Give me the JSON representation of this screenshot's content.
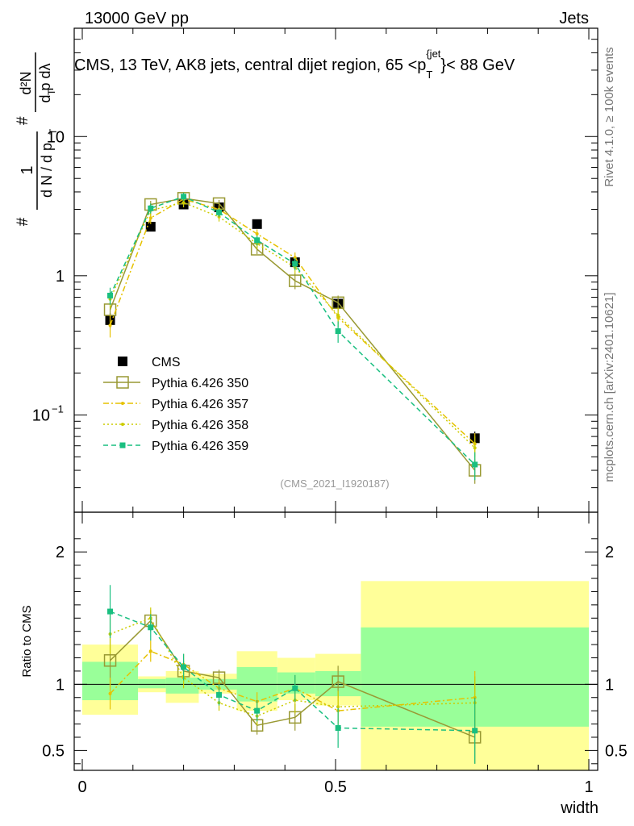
{
  "header": {
    "energy_label": "13000 GeV pp",
    "category_label": "Jets"
  },
  "side_labels": {
    "rivet": "Rivet 4.1.0, ≥ 100k events",
    "source": "mcplots.cern.ch [arXiv:2401.10621]"
  },
  "chart_data": {
    "type": "line",
    "title": "CMS, 13 TeV, AK8 jets, central dijet region, 65 <p_T^{jet}< 88 GeV",
    "title_parts": {
      "main": "CMS, 13 TeV, AK8 jets, central dijet region, 65 <p",
      "sub": "T",
      "sup": "{jet",
      "tail": "}< 88 GeV"
    },
    "watermark": "(CMS_2021_I1920187)",
    "xlabel": "width",
    "ylabel_top": "1 / (dN/dp_T) · d²N / (dp_T dλ)",
    "ylabel_ratio": "Ratio to CMS",
    "xlim": [
      0,
      1
    ],
    "ylim": [
      0.02,
      60
    ],
    "ratio_ylim": [
      0.35,
      2.3
    ],
    "x_ticks": [
      "0",
      "0.5",
      "1"
    ],
    "y_ticks": [
      {
        "v": 0.1,
        "label": "10",
        "exp": "−1"
      },
      {
        "v": 1,
        "label": "1"
      },
      {
        "v": 10,
        "label": "10"
      }
    ],
    "ratio_ticks": [
      "0.5",
      "1",
      "2"
    ],
    "x": [
      0.055,
      0.135,
      0.2,
      0.27,
      0.345,
      0.42,
      0.505,
      0.775
    ],
    "bins": [
      [
        0.0,
        0.11
      ],
      [
        0.11,
        0.165
      ],
      [
        0.165,
        0.23
      ],
      [
        0.23,
        0.305
      ],
      [
        0.305,
        0.385
      ],
      [
        0.385,
        0.46
      ],
      [
        0.46,
        0.55
      ],
      [
        0.55,
        1.0
      ]
    ],
    "series": [
      {
        "name": "CMS",
        "color": "#000000",
        "style": "square",
        "values": [
          0.48,
          2.25,
          3.25,
          3.1,
          2.35,
          1.25,
          0.63,
          0.068
        ],
        "errors": [
          0.06,
          0.12,
          0.15,
          0.15,
          0.12,
          0.08,
          0.05,
          0.008
        ]
      },
      {
        "name": "Pythia 6.426 350",
        "color": "#999933",
        "style": "solid-open-square",
        "values": [
          0.57,
          3.25,
          3.6,
          3.3,
          1.55,
          0.92,
          0.64,
          0.04
        ],
        "errors": [
          0.1,
          0.2,
          0.25,
          0.2,
          0.12,
          0.12,
          0.08,
          0.008
        ]
      },
      {
        "name": "Pythia 6.426 357",
        "color": "#e6c200",
        "style": "dashdot",
        "values": [
          0.44,
          2.6,
          3.55,
          3.0,
          2.0,
          1.35,
          0.5,
          0.062
        ],
        "errors": [
          0.08,
          0.25,
          0.25,
          0.2,
          0.15,
          0.12,
          0.07,
          0.012
        ]
      },
      {
        "name": "Pythia 6.426 358",
        "color": "#cccc00",
        "style": "dotted",
        "values": [
          0.68,
          2.95,
          3.35,
          2.65,
          1.7,
          1.15,
          0.52,
          0.058
        ],
        "errors": [
          0.1,
          0.25,
          0.25,
          0.2,
          0.15,
          0.12,
          0.07,
          0.012
        ]
      },
      {
        "name": "Pythia 6.426 359",
        "color": "#19bf80",
        "style": "dashed",
        "values": [
          0.72,
          3.05,
          3.7,
          2.85,
          1.8,
          1.22,
          0.4,
          0.044
        ],
        "errors": [
          0.1,
          0.25,
          0.25,
          0.2,
          0.15,
          0.12,
          0.07,
          0.01
        ]
      }
    ],
    "ratio_series": [
      {
        "name": "Pythia 6.426 350",
        "values": [
          1.18,
          1.48,
          1.1,
          1.05,
          0.69,
          0.75,
          1.02,
          0.6
        ],
        "errors": [
          0.2,
          0.08,
          0.08,
          0.06,
          0.07,
          0.1,
          0.12,
          0.2
        ]
      },
      {
        "name": "Pythia 6.426 357",
        "values": [
          0.93,
          1.25,
          1.15,
          0.97,
          0.87,
          0.97,
          0.8,
          0.9
        ],
        "errors": [
          0.12,
          0.08,
          0.08,
          0.06,
          0.07,
          0.1,
          0.12,
          0.2
        ]
      },
      {
        "name": "Pythia 6.426 358",
        "values": [
          1.38,
          1.5,
          1.05,
          0.86,
          0.76,
          0.88,
          0.83,
          0.86
        ],
        "errors": [
          0.15,
          0.08,
          0.08,
          0.06,
          0.07,
          0.1,
          0.12,
          0.2
        ]
      },
      {
        "name": "Pythia 6.426 359",
        "values": [
          1.55,
          1.43,
          1.13,
          0.92,
          0.8,
          0.97,
          0.67,
          0.65
        ],
        "errors": [
          0.2,
          0.1,
          0.1,
          0.08,
          0.08,
          0.1,
          0.15,
          0.25
        ]
      }
    ],
    "ratio_bands": {
      "yellow": [
        [
          0.77,
          1.3
        ],
        [
          0.94,
          1.06
        ],
        [
          0.86,
          1.1
        ],
        [
          0.93,
          1.08
        ],
        [
          0.8,
          1.25
        ],
        [
          0.88,
          1.2
        ],
        [
          0.84,
          1.23
        ],
        [
          0.35,
          1.78
        ]
      ],
      "green": [
        [
          0.88,
          1.17
        ],
        [
          0.97,
          1.04
        ],
        [
          0.93,
          1.05
        ],
        [
          0.96,
          1.04
        ],
        [
          0.87,
          1.13
        ],
        [
          0.93,
          1.09
        ],
        [
          0.91,
          1.1
        ],
        [
          0.68,
          1.43
        ]
      ]
    }
  }
}
